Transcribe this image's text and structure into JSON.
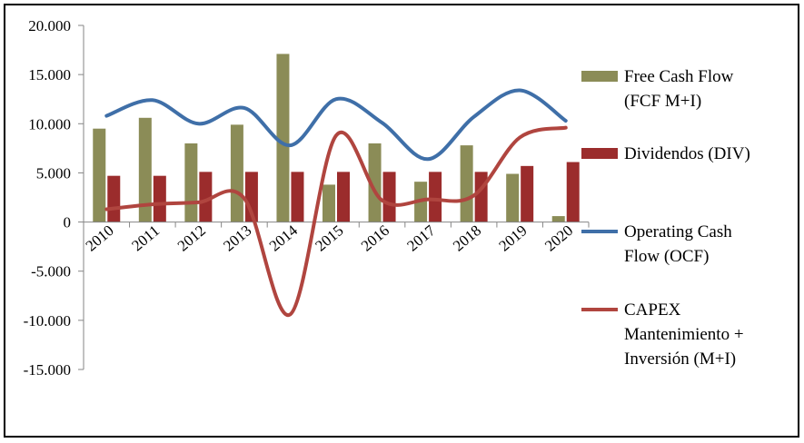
{
  "chart_data": {
    "type": "bar",
    "categories": [
      "2010",
      "2011",
      "2012",
      "2013",
      "2014",
      "2015",
      "2016",
      "2017",
      "2018",
      "2019",
      "2020"
    ],
    "ylim": [
      -15000,
      20000
    ],
    "yticks": [
      {
        "value": 20000,
        "label": "20.000"
      },
      {
        "value": 15000,
        "label": "15.000"
      },
      {
        "value": 10000,
        "label": "10.000"
      },
      {
        "value": 5000,
        "label": "5.000"
      },
      {
        "value": 0,
        "label": "0"
      },
      {
        "value": -5000,
        "label": "-5.000"
      },
      {
        "value": -10000,
        "label": "-10.000"
      },
      {
        "value": -15000,
        "label": "-15.000"
      }
    ],
    "grid": false,
    "legend_position": "right",
    "series": [
      {
        "name": "Free Cash Flow (FCF M+I)",
        "legend_lines": [
          "Free Cash Flow",
          "(FCF M+I)"
        ],
        "type": "bar",
        "color": "#8b8c57",
        "values": [
          9500,
          10600,
          8000,
          9900,
          17100,
          3800,
          8000,
          4100,
          7800,
          4900,
          600
        ]
      },
      {
        "name": "Dividendos (DIV)",
        "legend_lines": [
          "Dividendos (DIV)"
        ],
        "type": "bar",
        "color": "#9b2c2c",
        "values": [
          4700,
          4700,
          5100,
          5100,
          5100,
          5100,
          5100,
          5100,
          5100,
          5700,
          6100
        ]
      },
      {
        "name": "Operating Cash Flow (OCF)",
        "legend_lines": [
          "Operating Cash",
          "Flow (OCF)"
        ],
        "type": "line",
        "color": "#3f6fa8",
        "values": [
          10800,
          12400,
          10000,
          11600,
          7800,
          12500,
          10100,
          6400,
          10700,
          13400,
          10300
        ]
      },
      {
        "name": "CAPEX Mantenimiento + Inversión (M+I)",
        "legend_lines": [
          "CAPEX",
          "Mantenimiento +",
          "Inversión (M+I)"
        ],
        "type": "line",
        "color": "#b0453f",
        "values": [
          1300,
          1800,
          2000,
          2400,
          -9400,
          8800,
          2200,
          2300,
          2700,
          8600,
          9600
        ]
      }
    ]
  }
}
